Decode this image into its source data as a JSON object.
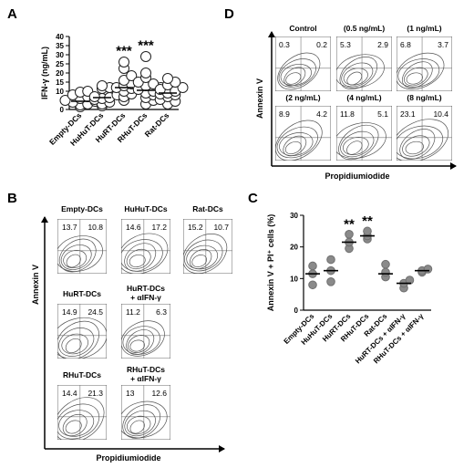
{
  "figure": {
    "panel_letters": [
      "A",
      "B",
      "C",
      "D"
    ]
  },
  "chart_data": [
    {
      "panel": "A",
      "type": "scatter",
      "ylabel": "IFN-γ (ng/mL)",
      "ylim": [
        0,
        40
      ],
      "yticks": [
        0,
        5,
        10,
        15,
        20,
        25,
        30,
        35,
        40
      ],
      "categories": [
        "Empty-DCs",
        "HuHuT-DCs",
        "HuRT-DCs",
        "RHuT-DCs",
        "Rat-DCs"
      ],
      "significance": [
        "",
        "",
        "***",
        "***",
        ""
      ],
      "means": [
        4.5,
        6.5,
        12.0,
        10.5,
        9.0
      ],
      "values": [
        [
          1.5,
          2.5,
          3,
          4,
          4.5,
          5,
          6,
          7,
          8,
          9.5,
          10
        ],
        [
          2,
          3,
          4,
          5.5,
          6,
          6.5,
          7,
          8,
          11.5,
          12,
          13
        ],
        [
          5,
          7,
          8.5,
          10,
          11.5,
          12,
          13,
          14,
          16,
          18.5,
          22.5,
          26
        ],
        [
          3,
          5,
          6.5,
          8,
          9,
          10,
          11,
          12,
          13,
          14,
          15,
          17.5,
          20,
          29
        ],
        [
          3,
          4.5,
          5.5,
          7,
          8,
          8.5,
          9,
          10,
          11,
          12,
          13.5,
          15,
          17
        ]
      ],
      "grid": false
    },
    {
      "panel": "B",
      "type": "contour-grid",
      "xlabel": "Propidiumiodide",
      "ylabel": "Annexin V",
      "plots": [
        {
          "title": "Empty-DCs",
          "title2": "",
          "ul": "13.7",
          "ur": "10.8"
        },
        {
          "title": "HuHuT-DCs",
          "title2": "",
          "ul": "14.6",
          "ur": "17.2"
        },
        {
          "title": "Rat-DCs",
          "title2": "",
          "ul": "15.2",
          "ur": "10.7"
        },
        {
          "title": "HuRT-DCs",
          "title2": "",
          "ul": "14.9",
          "ur": "24.5"
        },
        {
          "title": "HuRT-DCs",
          "title2": "+ αIFN-γ",
          "ul": "11.2",
          "ur": "6.3"
        },
        {
          "title": "RHuT-DCs",
          "title2": "",
          "ul": "14.4",
          "ur": "21.3"
        },
        {
          "title": "RHuT-DCs",
          "title2": "+ αIFN-γ",
          "ul": "13",
          "ur": "12.6"
        }
      ]
    },
    {
      "panel": "C",
      "type": "scatter",
      "ylabel": "Annexin V + PI⁺ cells (%)",
      "ylim": [
        0,
        30
      ],
      "yticks": [
        0,
        10,
        20,
        30
      ],
      "categories": [
        "Empty-DCs",
        "HuHuT-DCs",
        "HuRT-DCs",
        "RHuT-DCs",
        "Rat-DCs",
        "HuRT-DCs + αIFN-γ",
        "RHuT-DCs + αIFN-γ"
      ],
      "significance": [
        "",
        "",
        "**",
        "**",
        "",
        "",
        ""
      ],
      "means": [
        11.5,
        12.5,
        21.5,
        23.5,
        11.5,
        8.5,
        12.5
      ],
      "values": [
        [
          8,
          11.5,
          14
        ],
        [
          9,
          12.5,
          16
        ],
        [
          19.5,
          21.5,
          24
        ],
        [
          22.5,
          23.5,
          25
        ],
        [
          10.5,
          12,
          14.5
        ],
        [
          7,
          8.5,
          9.5
        ],
        [
          12,
          12.5,
          13
        ]
      ],
      "grid": false
    },
    {
      "panel": "D",
      "type": "contour-grid",
      "xlabel": "Propidiumiodide",
      "ylabel": "Annexin V",
      "plots": [
        {
          "title": "Control",
          "ul": "0.3",
          "ur": "0.2"
        },
        {
          "title": "(0.5 ng/mL)",
          "ul": "5.3",
          "ur": "2.9"
        },
        {
          "title": "(1 ng/mL)",
          "ul": "6.8",
          "ur": "3.7"
        },
        {
          "title": "(2 ng/mL)",
          "ul": "8.9",
          "ur": "4.2"
        },
        {
          "title": "(4 ng/mL)",
          "ul": "11.8",
          "ur": "5.1"
        },
        {
          "title": "(8 ng/mL)",
          "ul": "23.1",
          "ur": "10.4"
        }
      ]
    }
  ]
}
